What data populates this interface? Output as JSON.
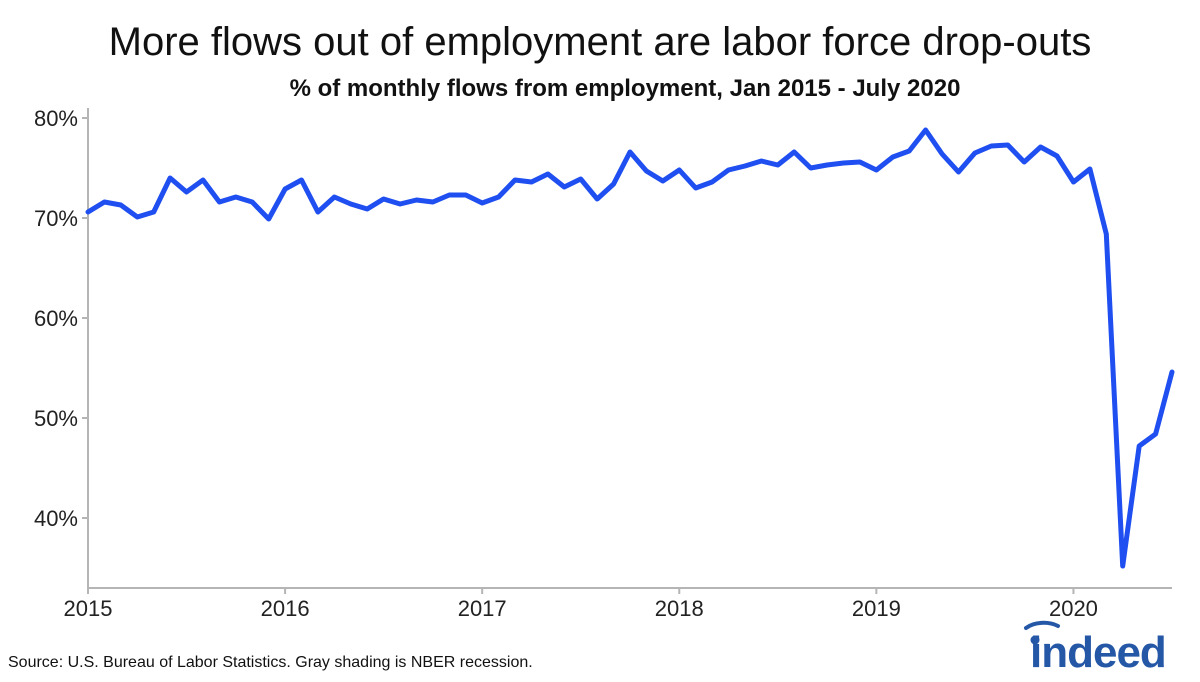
{
  "chart_data": {
    "type": "line",
    "title": "More flows out of employment are labor force drop-outs",
    "subtitle": "% of monthly flows from employment, Jan 2015 - July 2020",
    "xlabel": "",
    "ylabel": "",
    "ylim": [
      33,
      81
    ],
    "y_ticks": [
      40,
      50,
      60,
      70,
      80
    ],
    "y_tick_labels": [
      "40%",
      "50%",
      "60%",
      "70%",
      "80%"
    ],
    "x_ticks": [
      2015,
      2016,
      2017,
      2018,
      2019,
      2020
    ],
    "x_tick_labels": [
      "2015",
      "2016",
      "2017",
      "2018",
      "2019",
      "2020"
    ],
    "grid": false,
    "series": [
      {
        "name": "% of monthly flows from employment",
        "color": "#1f4ff0",
        "x_start": "2015-01",
        "x_end": "2020-07",
        "values": [
          70.6,
          71.6,
          71.3,
          70.1,
          70.6,
          74.0,
          72.6,
          73.8,
          71.6,
          72.1,
          71.6,
          69.9,
          72.9,
          73.8,
          70.6,
          72.1,
          71.4,
          70.9,
          71.9,
          71.4,
          71.8,
          71.6,
          72.3,
          72.3,
          71.5,
          72.1,
          73.8,
          73.6,
          74.4,
          73.1,
          73.9,
          71.9,
          73.4,
          76.6,
          74.7,
          73.7,
          74.8,
          73.0,
          73.6,
          74.8,
          75.2,
          75.7,
          75.3,
          76.6,
          75.0,
          75.3,
          75.5,
          75.6,
          74.8,
          76.1,
          76.7,
          78.8,
          76.4,
          74.6,
          76.5,
          77.2,
          77.3,
          75.6,
          77.1,
          76.2,
          73.6,
          74.9,
          68.4,
          35.2,
          47.2,
          48.4,
          54.6
        ]
      }
    ],
    "source": "Source: U.S. Bureau of Labor Statistics. Gray shading is NBER recession.",
    "brand": "indeed"
  }
}
